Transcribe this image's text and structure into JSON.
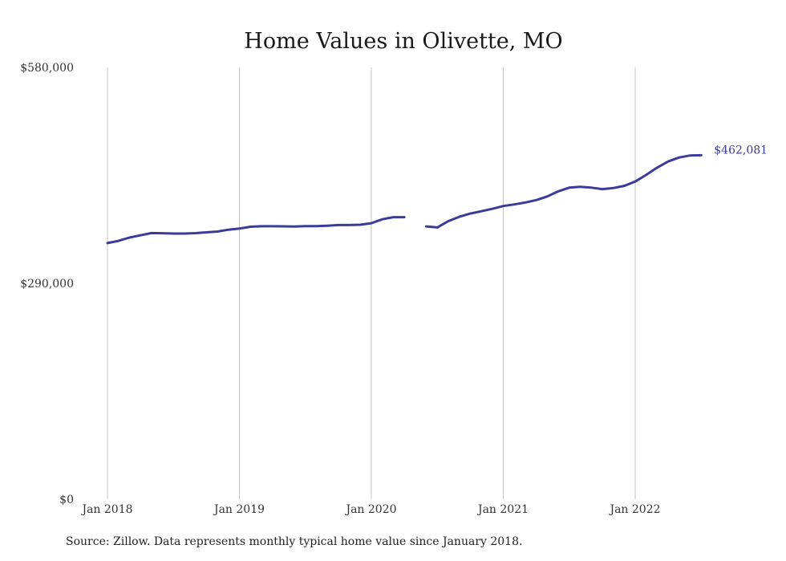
{
  "chart_data": {
    "type": "line",
    "title": "Home Values in Olivette, MO",
    "xlabel": "",
    "ylabel": "",
    "ylim": [
      0,
      580000
    ],
    "y_ticks": [
      {
        "value": 0,
        "label": "$0"
      },
      {
        "value": 290000,
        "label": "$290,000"
      },
      {
        "value": 580000,
        "label": "$580,000"
      }
    ],
    "x_ticks": [
      "Jan 2018",
      "Jan 2019",
      "Jan 2020",
      "Jan 2021",
      "Jan 2022"
    ],
    "grid": "vertical",
    "end_label": "$462,081",
    "series": [
      {
        "color": "#3b3b9a",
        "x": [
          "2018-01",
          "2018-02",
          "2018-03",
          "2018-04",
          "2018-05",
          "2018-06",
          "2018-07",
          "2018-08",
          "2018-09",
          "2018-10",
          "2018-11",
          "2018-12",
          "2019-01",
          "2019-02",
          "2019-03",
          "2019-04",
          "2019-05",
          "2019-06",
          "2019-07",
          "2019-08",
          "2019-09",
          "2019-10",
          "2019-11",
          "2019-12",
          "2020-01",
          "2020-02",
          "2020-03",
          "2020-04",
          "2020-05",
          "2020-06",
          "2020-07",
          "2020-08",
          "2020-09",
          "2020-10",
          "2020-11",
          "2020-12",
          "2021-01",
          "2021-02",
          "2021-03",
          "2021-04",
          "2021-05",
          "2021-06",
          "2021-07",
          "2021-08",
          "2021-09",
          "2021-10",
          "2021-11",
          "2021-12",
          "2022-01",
          "2022-02",
          "2022-03",
          "2022-04",
          "2022-05",
          "2022-06",
          "2022-07"
        ],
        "values": [
          344000,
          347000,
          351500,
          354500,
          357500,
          357300,
          356800,
          356800,
          357400,
          358500,
          359500,
          362000,
          363500,
          366000,
          366700,
          366700,
          366500,
          366300,
          366900,
          366900,
          367400,
          368300,
          368300,
          368700,
          370700,
          376000,
          378800,
          378800,
          null,
          366400,
          365000,
          373500,
          379400,
          383700,
          386800,
          390000,
          393800,
          396000,
          398600,
          401800,
          406700,
          413600,
          418500,
          419600,
          418500,
          416600,
          418000,
          420900,
          426700,
          435700,
          445500,
          453600,
          459000,
          461700,
          462081
        ]
      }
    ]
  },
  "source_note": "Source: Zillow. Data represents monthly typical home value since January 2018."
}
